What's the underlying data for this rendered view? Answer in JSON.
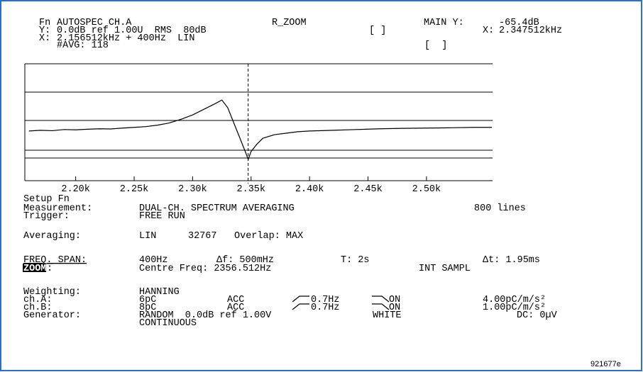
{
  "header": {
    "fn": "Fn",
    "function": "AUTOSPEC CH.A",
    "mode": "R_ZOOM",
    "main_y_label": "MAIN Y:",
    "main_y_value": "-65.4dB",
    "y_label": "Y:",
    "y_setting": "0.0dB ref 1.00U  RMS  80dB",
    "bracket1": "[ ]",
    "main_x_label": "X:",
    "main_x_value": "2.347512kHz",
    "x_label": "X:",
    "x_setting": "2.156512kHz + 400Hz  LIN",
    "avg": "#AVG: 118",
    "bracket2": "[  ]"
  },
  "chart_data": {
    "type": "line",
    "x": [
      2160,
      2170,
      2180,
      2190,
      2200,
      2210,
      2220,
      2230,
      2240,
      2250,
      2260,
      2270,
      2280,
      2290,
      2300,
      2310,
      2320,
      2325,
      2330,
      2335,
      2340,
      2345,
      2347.512,
      2350,
      2355,
      2360,
      2370,
      2380,
      2390,
      2400,
      2420,
      2440,
      2460,
      2480,
      2500,
      2520,
      2540,
      2556
    ],
    "values": [
      -46,
      -45.5,
      -45.8,
      -45,
      -45.2,
      -44.8,
      -44.5,
      -44.6,
      -44,
      -43.5,
      -43,
      -42,
      -40.5,
      -38,
      -35,
      -31,
      -27,
      -24.8,
      -30,
      -40,
      -50,
      -60,
      -65.4,
      -60,
      -55,
      -51,
      -48.5,
      -47.5,
      -46.5,
      -46,
      -45.5,
      -45,
      -44.5,
      -44.2,
      -44,
      -43.8,
      -43.5,
      -43.5
    ],
    "color": "#000000",
    "xlim": [
      2156.512,
      2556.512
    ],
    "ylim": [
      -80,
      0
    ],
    "xticks": [
      {
        "value": 2200,
        "label": "2.20k"
      },
      {
        "value": 2250,
        "label": "2.25k"
      },
      {
        "value": 2300,
        "label": "2.30k"
      },
      {
        "value": 2350,
        "label": "2.35k"
      },
      {
        "value": 2400,
        "label": "2.40k"
      },
      {
        "value": 2450,
        "label": "2.45k"
      },
      {
        "value": 2500,
        "label": "2.50k"
      }
    ]
  },
  "setup": {
    "title": "Setup Fn",
    "measurement": {
      "label": "Measurement:",
      "value": "DUAL-CH. SPECTRUM AVERAGING",
      "lines": "800 lines"
    },
    "trigger": {
      "label": "Trigger:",
      "value": "FREE RUN"
    },
    "averaging": {
      "label": "Averaging:",
      "mode": "LIN",
      "count": "32767",
      "overlap": "Overlap: MAX"
    },
    "freq_span": {
      "label": "FREQ. SPAN:",
      "span": "400Hz",
      "df": "Δf: 500mHz",
      "t": "T: 2s",
      "dt": "Δt: 1.95ms"
    },
    "zoom": {
      "label": "ZOOM",
      "colon": ":",
      "centre": "Centre Freq: 2356.512Hz",
      "sampling": "INT SAMPL"
    },
    "weighting": {
      "label": "Weighting:",
      "value": "HANNING"
    },
    "ch_a": {
      "label": "ch.A:",
      "sens": "6pC",
      "type": "ACC",
      "hp": "0.7Hz",
      "lp": "ON",
      "cal": "4.00pC/m/s²"
    },
    "ch_b": {
      "label": "ch.B:",
      "sens": "8pC",
      "type": "ACC",
      "hp": "0.7Hz",
      "lp": "ON",
      "cal": "1.00pC/m/s²"
    },
    "generator": {
      "label": "Generator:",
      "signal": "RANDOM  0.0dB ref 1.00V",
      "shape": "WHITE",
      "dc": "DC: 0µV",
      "mode": "CONTINUOUS"
    }
  },
  "footer": {
    "id": "921677e"
  }
}
